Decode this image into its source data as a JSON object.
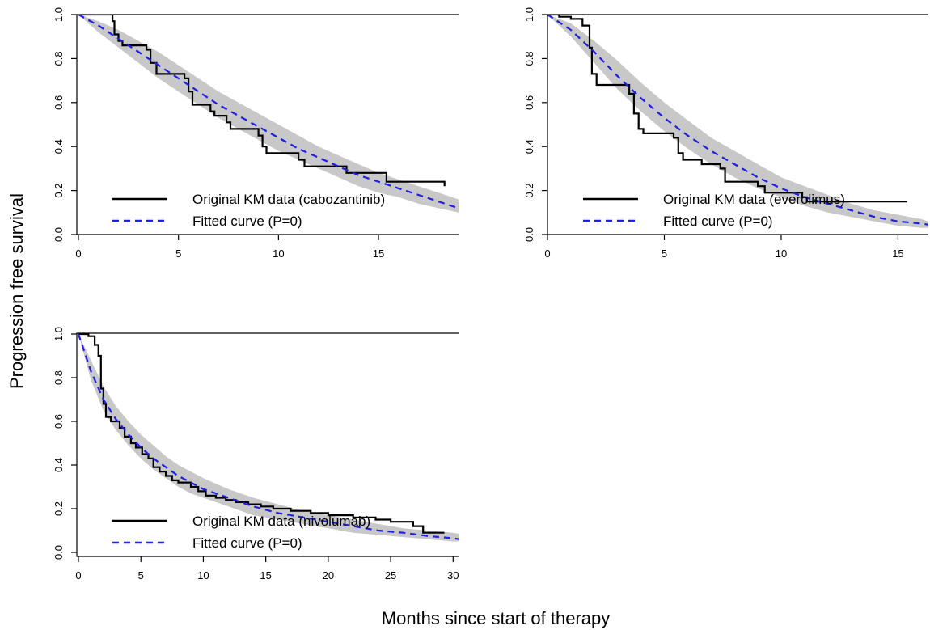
{
  "figure": {
    "ylabel": "Progression free survival",
    "xlabel": "Months since start of therapy"
  },
  "chart_data": [
    {
      "type": "line",
      "xlim": [
        0,
        19
      ],
      "ylim": [
        0,
        1.0
      ],
      "xticks": [
        0,
        5,
        10,
        15
      ],
      "yticks": [
        0.0,
        0.2,
        0.4,
        0.6,
        0.8,
        1.0
      ],
      "ytick_labels": [
        "0.0",
        "0.2",
        "0.4",
        "0.6",
        "0.8",
        "1.0"
      ],
      "legend_position": "bottom-left",
      "series": [
        {
          "name": "Original KM data (cabozantinib)",
          "style": "step",
          "color": "#000000",
          "x": [
            0,
            1.7,
            1.8,
            2.0,
            2.2,
            3.4,
            3.6,
            3.9,
            5.3,
            5.5,
            5.7,
            6.6,
            6.8,
            7.4,
            7.6,
            9.0,
            9.2,
            9.4,
            11.0,
            11.3,
            13.4,
            15.4,
            18.3
          ],
          "y": [
            1.0,
            0.97,
            0.91,
            0.88,
            0.86,
            0.84,
            0.78,
            0.73,
            0.71,
            0.65,
            0.59,
            0.56,
            0.54,
            0.51,
            0.48,
            0.45,
            0.4,
            0.37,
            0.34,
            0.31,
            0.28,
            0.24,
            0.22
          ]
        },
        {
          "name": "Fitted curve (P=0)",
          "style": "dashed",
          "color": "#1f1fe0",
          "x": [
            0,
            1,
            2,
            3,
            4,
            5,
            6,
            7,
            8,
            9,
            10,
            11,
            12,
            13,
            14,
            15,
            16,
            17,
            18,
            19
          ],
          "y": [
            1.0,
            0.95,
            0.89,
            0.83,
            0.77,
            0.71,
            0.65,
            0.59,
            0.54,
            0.49,
            0.44,
            0.39,
            0.35,
            0.31,
            0.27,
            0.24,
            0.21,
            0.18,
            0.15,
            0.12
          ]
        }
      ],
      "band": {
        "color": "#c8c8c8",
        "x": [
          0,
          1,
          2,
          3,
          4,
          5,
          6,
          7,
          8,
          9,
          10,
          11,
          12,
          13,
          14,
          15,
          16,
          17,
          18,
          19
        ],
        "lower": [
          1.0,
          0.92,
          0.85,
          0.78,
          0.71,
          0.65,
          0.59,
          0.53,
          0.48,
          0.43,
          0.38,
          0.34,
          0.3,
          0.26,
          0.22,
          0.19,
          0.17,
          0.14,
          0.12,
          0.1
        ],
        "upper": [
          1.0,
          0.97,
          0.93,
          0.88,
          0.83,
          0.77,
          0.71,
          0.65,
          0.6,
          0.55,
          0.5,
          0.45,
          0.4,
          0.36,
          0.32,
          0.28,
          0.25,
          0.22,
          0.19,
          0.16
        ]
      }
    },
    {
      "type": "line",
      "xlim": [
        0,
        16.3
      ],
      "ylim": [
        0,
        1.0
      ],
      "xticks": [
        0,
        5,
        10,
        15
      ],
      "yticks": [
        0.0,
        0.2,
        0.4,
        0.6,
        0.8,
        1.0
      ],
      "ytick_labels": [
        "0.0",
        "0.2",
        "0.4",
        "0.6",
        "0.8",
        "1.0"
      ],
      "legend_position": "bottom-left",
      "series": [
        {
          "name": "Original KM data (everolimus)",
          "style": "step",
          "color": "#000000",
          "x": [
            0,
            0.5,
            1.0,
            1.5,
            1.8,
            1.9,
            2.1,
            3.5,
            3.7,
            3.9,
            4.1,
            5.4,
            5.6,
            5.8,
            6.6,
            7.4,
            7.6,
            9.0,
            9.3,
            10.9,
            11.1,
            15.4
          ],
          "y": [
            1.0,
            0.99,
            0.98,
            0.95,
            0.85,
            0.73,
            0.68,
            0.64,
            0.55,
            0.48,
            0.46,
            0.44,
            0.37,
            0.34,
            0.32,
            0.3,
            0.24,
            0.22,
            0.19,
            0.17,
            0.15,
            0.15
          ]
        },
        {
          "name": "Fitted curve (P=0)",
          "style": "dashed",
          "color": "#1f1fe0",
          "x": [
            0,
            1,
            2,
            3,
            4,
            5,
            6,
            7,
            8,
            9,
            10,
            11,
            12,
            13,
            14,
            15,
            16,
            16.3
          ],
          "y": [
            1.0,
            0.93,
            0.83,
            0.72,
            0.62,
            0.53,
            0.45,
            0.38,
            0.32,
            0.26,
            0.21,
            0.17,
            0.14,
            0.11,
            0.08,
            0.06,
            0.05,
            0.045
          ]
        }
      ],
      "band": {
        "color": "#c8c8c8",
        "x": [
          0,
          1,
          2,
          3,
          4,
          5,
          6,
          7,
          8,
          9,
          10,
          11,
          12,
          13,
          14,
          15,
          16,
          16.3
        ],
        "lower": [
          1.0,
          0.9,
          0.78,
          0.66,
          0.56,
          0.47,
          0.39,
          0.32,
          0.26,
          0.21,
          0.17,
          0.13,
          0.1,
          0.08,
          0.06,
          0.04,
          0.03,
          0.03
        ],
        "upper": [
          1.0,
          0.96,
          0.88,
          0.79,
          0.69,
          0.6,
          0.52,
          0.44,
          0.38,
          0.32,
          0.26,
          0.22,
          0.18,
          0.14,
          0.11,
          0.09,
          0.07,
          0.06
        ]
      }
    },
    {
      "type": "line",
      "xlim": [
        0,
        30.5
      ],
      "ylim": [
        0,
        1.0
      ],
      "xticks": [
        0,
        5,
        10,
        15,
        20,
        25,
        30
      ],
      "yticks": [
        0.0,
        0.2,
        0.4,
        0.6,
        0.8,
        1.0
      ],
      "ytick_labels": [
        "0.0",
        "0.2",
        "0.4",
        "0.6",
        "0.8",
        "1.0"
      ],
      "legend_position": "bottom-left",
      "series": [
        {
          "name": "Original KM data (nivolumab)",
          "style": "step",
          "color": "#000000",
          "x": [
            0,
            0.8,
            1.3,
            1.6,
            1.8,
            2.0,
            2.2,
            2.6,
            3.3,
            3.7,
            4.2,
            4.6,
            5.1,
            5.6,
            6.0,
            6.5,
            7.0,
            7.5,
            8.0,
            9.0,
            9.6,
            10.2,
            11.0,
            11.8,
            12.6,
            13.6,
            14.6,
            15.6,
            17.0,
            18.6,
            20.0,
            22.0,
            23.8,
            25.0,
            26.8,
            27.6,
            29.3
          ],
          "y": [
            1.0,
            0.99,
            0.95,
            0.9,
            0.75,
            0.68,
            0.62,
            0.6,
            0.57,
            0.53,
            0.5,
            0.48,
            0.45,
            0.43,
            0.39,
            0.37,
            0.35,
            0.33,
            0.32,
            0.3,
            0.28,
            0.26,
            0.25,
            0.24,
            0.23,
            0.22,
            0.21,
            0.2,
            0.19,
            0.18,
            0.17,
            0.16,
            0.15,
            0.14,
            0.12,
            0.09,
            0.09
          ]
        },
        {
          "name": "Fitted curve (P=0)",
          "style": "dashed",
          "color": "#1f1fe0",
          "x": [
            0,
            1,
            2,
            3,
            4,
            5,
            6,
            7,
            8,
            9,
            10,
            12,
            14,
            16,
            18,
            20,
            22,
            24,
            26,
            28,
            30,
            30.5
          ],
          "y": [
            1.0,
            0.83,
            0.7,
            0.61,
            0.54,
            0.48,
            0.43,
            0.39,
            0.35,
            0.32,
            0.29,
            0.25,
            0.21,
            0.18,
            0.16,
            0.14,
            0.12,
            0.1,
            0.09,
            0.075,
            0.065,
            0.06
          ]
        }
      ],
      "band": {
        "color": "#c8c8c8",
        "x": [
          0,
          1,
          2,
          3,
          4,
          5,
          6,
          7,
          8,
          9,
          10,
          12,
          14,
          16,
          18,
          20,
          22,
          24,
          26,
          28,
          30,
          30.5
        ],
        "lower": [
          1.0,
          0.79,
          0.65,
          0.56,
          0.49,
          0.43,
          0.38,
          0.34,
          0.3,
          0.27,
          0.25,
          0.21,
          0.17,
          0.15,
          0.13,
          0.11,
          0.09,
          0.08,
          0.07,
          0.06,
          0.05,
          0.05
        ],
        "upper": [
          1.0,
          0.88,
          0.76,
          0.67,
          0.6,
          0.54,
          0.49,
          0.44,
          0.4,
          0.37,
          0.34,
          0.29,
          0.25,
          0.22,
          0.19,
          0.17,
          0.15,
          0.13,
          0.11,
          0.1,
          0.09,
          0.085
        ]
      }
    }
  ]
}
